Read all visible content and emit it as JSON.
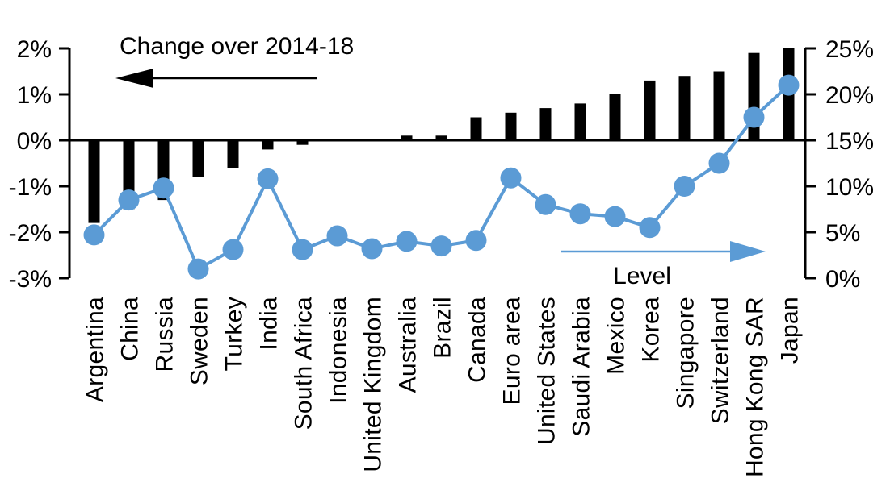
{
  "chart_data": {
    "type": "combo_bar_line",
    "title": "",
    "categories": [
      "Argentina",
      "China",
      "Russia",
      "Sweden",
      "Turkey",
      "India",
      "South Africa",
      "Indonesia",
      "United Kingdom",
      "Australia",
      "Brazil",
      "Canada",
      "Euro area",
      "United States",
      "Saudi Arabia",
      "Mexico",
      "Korea",
      "Singapore",
      "Switzerland",
      "Hong Kong SAR",
      "Japan"
    ],
    "series": [
      {
        "name": "Change over 2014-18",
        "type": "bar",
        "axis": "left",
        "color": "#000000",
        "values": [
          -1.8,
          -1.5,
          -1.3,
          -0.8,
          -0.6,
          -0.2,
          -0.1,
          0,
          0,
          0.1,
          0.1,
          0.5,
          0.6,
          0.7,
          0.8,
          1.0,
          1.3,
          1.4,
          1.5,
          1.9,
          2.0
        ]
      },
      {
        "name": "Level",
        "type": "line",
        "axis": "right",
        "color": "#5b9bd5",
        "values": [
          4.7,
          8.5,
          9.8,
          1.0,
          3.1,
          10.8,
          3.1,
          4.6,
          3.2,
          4.0,
          3.5,
          4.1,
          10.9,
          8.0,
          7.0,
          6.7,
          5.5,
          10.0,
          12.5,
          17.5,
          21.0
        ]
      }
    ],
    "left_axis": {
      "tick_labels": [
        "2%",
        "1%",
        "0%",
        "-1%",
        "-2%",
        "-3%"
      ],
      "tick_values": [
        2,
        1,
        0,
        -1,
        -2,
        -3
      ],
      "min": -3,
      "max": 2
    },
    "right_axis": {
      "tick_labels": [
        "25%",
        "20%",
        "15%",
        "10%",
        "5%",
        "0%"
      ],
      "tick_values": [
        25,
        20,
        15,
        10,
        5,
        0
      ],
      "min": 0,
      "max": 25
    },
    "annotations": {
      "bar_arrow_label": "Change over 2014-18",
      "bar_arrow_direction": "left",
      "line_arrow_label": "Level",
      "line_arrow_direction": "right"
    },
    "grid": false,
    "legend_position": "none"
  },
  "colors": {
    "bar": "#000000",
    "line": "#5b9bd5",
    "axis": "#000000",
    "background": "#ffffff",
    "text": "#000000"
  }
}
